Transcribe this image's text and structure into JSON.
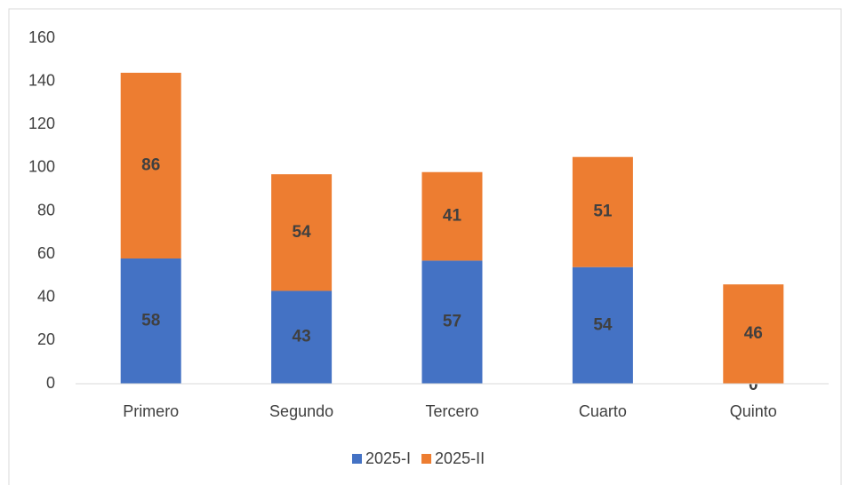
{
  "chart_data": {
    "type": "bar",
    "stacked": true,
    "categories": [
      "Primero",
      "Segundo",
      "Tercero",
      "Cuarto",
      "Quinto"
    ],
    "series": [
      {
        "name": "2025-I",
        "color": "#4472c4",
        "values": [
          58,
          43,
          57,
          54,
          0
        ]
      },
      {
        "name": "2025-II",
        "color": "#ed7d31",
        "values": [
          86,
          54,
          41,
          51,
          46
        ]
      }
    ],
    "ylim": [
      0,
      160
    ],
    "yticks": [
      0,
      20,
      40,
      60,
      80,
      100,
      120,
      140,
      160
    ],
    "grid": false,
    "legend": "bottom"
  }
}
